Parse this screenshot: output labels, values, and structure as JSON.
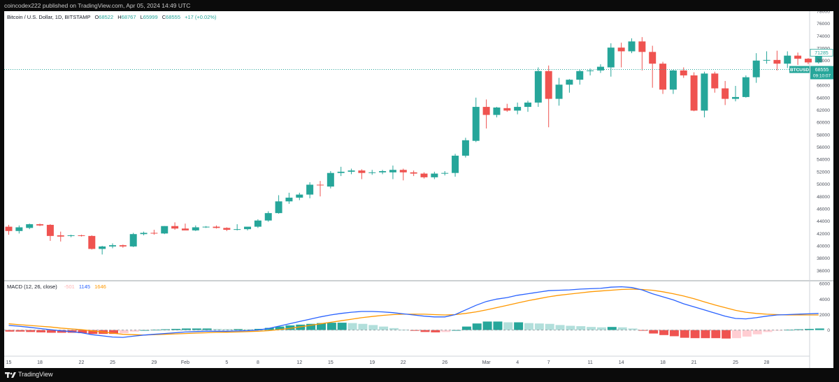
{
  "header": {
    "publish_line": "coincodex222 published on TradingView.com, Apr 05, 2024 14:49 UTC"
  },
  "legend": {
    "symbol": "Bitcoin / U.S. Dollar, 1D, BITSTAMP",
    "o_label": "O",
    "o_value": "68522",
    "h_label": "H",
    "h_value": "68767",
    "l_label": "L",
    "l_value": "65999",
    "c_label": "C",
    "c_value": "68555",
    "change": "+17 (+0.02%)"
  },
  "macd_legend": {
    "title": "MACD (12, 26, close)",
    "hist_value": "-501",
    "macd_value": "1145",
    "signal_value": "1646"
  },
  "badges": {
    "prev_price": "71285",
    "price": "68555",
    "symbol": "BTCUSD",
    "countdown": "09:10:07"
  },
  "footer": {
    "brand": "TradingView"
  },
  "colors": {
    "up": "#26a69a",
    "down": "#ef5350",
    "macd_line": "#2962ff",
    "signal_line": "#ff9800",
    "hist_up_strong": "#26a69a",
    "hist_up_weak": "#b2dfdb",
    "hist_down_strong": "#ef5350",
    "hist_down_weak": "#ffcdd2"
  },
  "chart_data": [
    {
      "type": "candlestick",
      "title": "Bitcoin / U.S. Dollar, 1D, BITSTAMP",
      "ylim": [
        34800,
        78000
      ],
      "y_ticks": [
        36000,
        38000,
        40000,
        42000,
        44000,
        46000,
        48000,
        50000,
        52000,
        54000,
        56000,
        58000,
        60000,
        62000,
        64000,
        66000,
        68000,
        70000,
        72000,
        74000,
        76000,
        78000
      ],
      "x_ticks": [
        "15",
        "18",
        "22",
        "25",
        "29",
        "Feb",
        "5",
        "8",
        "12",
        "15",
        "19",
        "22",
        "26",
        "Mar",
        "4",
        "7",
        "11",
        "14",
        "18",
        "21",
        "25",
        "28"
      ],
      "candles": [
        {
          "o": 43100,
          "h": 43400,
          "l": 41800,
          "c": 42400
        },
        {
          "o": 42400,
          "h": 43300,
          "l": 42000,
          "c": 43000
        },
        {
          "o": 42900,
          "h": 43600,
          "l": 42700,
          "c": 43500
        },
        {
          "o": 43500,
          "h": 43600,
          "l": 43200,
          "c": 43300
        },
        {
          "o": 43400,
          "h": 43500,
          "l": 40800,
          "c": 41600
        },
        {
          "o": 41700,
          "h": 42300,
          "l": 40700,
          "c": 41500
        },
        {
          "o": 41600,
          "h": 41800,
          "l": 41400,
          "c": 41700
        },
        {
          "o": 41700,
          "h": 41800,
          "l": 41500,
          "c": 41600
        },
        {
          "o": 41600,
          "h": 41700,
          "l": 39400,
          "c": 39500
        },
        {
          "o": 39500,
          "h": 40000,
          "l": 38600,
          "c": 39900
        },
        {
          "o": 39900,
          "h": 40400,
          "l": 39600,
          "c": 40100
        },
        {
          "o": 40100,
          "h": 40200,
          "l": 39700,
          "c": 39900
        },
        {
          "o": 39900,
          "h": 42100,
          "l": 39800,
          "c": 41900
        },
        {
          "o": 41900,
          "h": 42300,
          "l": 41700,
          "c": 42100
        },
        {
          "o": 42100,
          "h": 42600,
          "l": 41800,
          "c": 42000
        },
        {
          "o": 42000,
          "h": 43200,
          "l": 41900,
          "c": 43200
        },
        {
          "o": 43200,
          "h": 43800,
          "l": 42600,
          "c": 42800
        },
        {
          "o": 42800,
          "h": 43600,
          "l": 42600,
          "c": 42500
        },
        {
          "o": 42500,
          "h": 43300,
          "l": 42400,
          "c": 43000
        },
        {
          "o": 43000,
          "h": 43200,
          "l": 42900,
          "c": 43100
        },
        {
          "o": 43100,
          "h": 43300,
          "l": 42800,
          "c": 42900
        },
        {
          "o": 42900,
          "h": 43000,
          "l": 42400,
          "c": 42600
        },
        {
          "o": 42600,
          "h": 43500,
          "l": 42500,
          "c": 42700
        },
        {
          "o": 42700,
          "h": 43000,
          "l": 42500,
          "c": 43100
        },
        {
          "o": 43100,
          "h": 44300,
          "l": 42900,
          "c": 44100
        },
        {
          "o": 44100,
          "h": 45600,
          "l": 43900,
          "c": 45300
        },
        {
          "o": 45300,
          "h": 48200,
          "l": 45200,
          "c": 47200
        },
        {
          "o": 47200,
          "h": 48600,
          "l": 46800,
          "c": 47800
        },
        {
          "o": 47800,
          "h": 48600,
          "l": 47400,
          "c": 48300
        },
        {
          "o": 48300,
          "h": 50300,
          "l": 47700,
          "c": 49900
        },
        {
          "o": 49900,
          "h": 50500,
          "l": 48000,
          "c": 49800
        },
        {
          "o": 49600,
          "h": 52100,
          "l": 49300,
          "c": 51800
        },
        {
          "o": 51800,
          "h": 52800,
          "l": 51300,
          "c": 52000
        },
        {
          "o": 52000,
          "h": 52500,
          "l": 51600,
          "c": 52200
        },
        {
          "o": 52200,
          "h": 52400,
          "l": 50800,
          "c": 51800
        },
        {
          "o": 51800,
          "h": 52300,
          "l": 51500,
          "c": 51900
        },
        {
          "o": 51900,
          "h": 52300,
          "l": 51600,
          "c": 52100
        },
        {
          "o": 51900,
          "h": 53000,
          "l": 50800,
          "c": 52300
        },
        {
          "o": 52300,
          "h": 52500,
          "l": 50600,
          "c": 51900
        },
        {
          "o": 51900,
          "h": 52200,
          "l": 51300,
          "c": 51700
        },
        {
          "o": 51700,
          "h": 51900,
          "l": 50900,
          "c": 51100
        },
        {
          "o": 51100,
          "h": 52000,
          "l": 50800,
          "c": 51700
        },
        {
          "o": 51700,
          "h": 52100,
          "l": 51400,
          "c": 51800
        },
        {
          "o": 51800,
          "h": 54900,
          "l": 51200,
          "c": 54600
        },
        {
          "o": 54600,
          "h": 57500,
          "l": 54300,
          "c": 57100
        },
        {
          "o": 57000,
          "h": 64000,
          "l": 56800,
          "c": 62500
        },
        {
          "o": 62500,
          "h": 63700,
          "l": 59000,
          "c": 61200
        },
        {
          "o": 61200,
          "h": 62500,
          "l": 60800,
          "c": 62400
        },
        {
          "o": 62300,
          "h": 63000,
          "l": 61700,
          "c": 61900
        },
        {
          "o": 61900,
          "h": 63200,
          "l": 61300,
          "c": 62500
        },
        {
          "o": 62500,
          "h": 63500,
          "l": 61700,
          "c": 63200
        },
        {
          "o": 63200,
          "h": 68900,
          "l": 62500,
          "c": 68300
        },
        {
          "o": 68300,
          "h": 69200,
          "l": 59200,
          "c": 63800
        },
        {
          "o": 63800,
          "h": 67200,
          "l": 62700,
          "c": 66100
        },
        {
          "o": 66100,
          "h": 67000,
          "l": 64800,
          "c": 66900
        },
        {
          "o": 66900,
          "h": 68500,
          "l": 66100,
          "c": 68300
        },
        {
          "o": 68300,
          "h": 68700,
          "l": 67600,
          "c": 68400
        },
        {
          "o": 68400,
          "h": 69400,
          "l": 68000,
          "c": 69000
        },
        {
          "o": 68900,
          "h": 72800,
          "l": 67400,
          "c": 72100
        },
        {
          "o": 72100,
          "h": 72900,
          "l": 68900,
          "c": 71500
        },
        {
          "o": 71500,
          "h": 73600,
          "l": 71200,
          "c": 73100
        },
        {
          "o": 73100,
          "h": 73800,
          "l": 68400,
          "c": 71400
        },
        {
          "o": 71400,
          "h": 72400,
          "l": 65600,
          "c": 69500
        },
        {
          "o": 69500,
          "h": 69800,
          "l": 64600,
          "c": 65300
        },
        {
          "o": 65300,
          "h": 68500,
          "l": 64600,
          "c": 68400
        },
        {
          "o": 68400,
          "h": 68900,
          "l": 67200,
          "c": 67600
        },
        {
          "o": 67600,
          "h": 68100,
          "l": 61800,
          "c": 61900
        },
        {
          "o": 61900,
          "h": 68200,
          "l": 60800,
          "c": 67900
        },
        {
          "o": 67900,
          "h": 68200,
          "l": 64800,
          "c": 65500
        },
        {
          "o": 65500,
          "h": 66700,
          "l": 62800,
          "c": 63800
        },
        {
          "o": 63800,
          "h": 65900,
          "l": 63400,
          "c": 64100
        },
        {
          "o": 64100,
          "h": 67600,
          "l": 64000,
          "c": 67300
        },
        {
          "o": 67300,
          "h": 71200,
          "l": 66400,
          "c": 70000
        },
        {
          "o": 70000,
          "h": 71500,
          "l": 69500,
          "c": 70100
        },
        {
          "o": 70100,
          "h": 71600,
          "l": 68400,
          "c": 69500
        },
        {
          "o": 69500,
          "h": 71500,
          "l": 68800,
          "c": 70800
        },
        {
          "o": 70800,
          "h": 71300,
          "l": 69300,
          "c": 70300
        },
        {
          "o": 70300,
          "h": 70400,
          "l": 69400,
          "c": 69700
        },
        {
          "o": 69700,
          "h": 71500,
          "l": 69500,
          "c": 71300
        }
      ]
    },
    {
      "type": "line",
      "title": "MACD (12, 26, close)",
      "ylim": [
        -3200,
        6200
      ],
      "y_ticks": [
        0,
        2000,
        4000,
        6000
      ],
      "series": [
        {
          "name": "1145",
          "values": [
            600,
            500,
            350,
            200,
            50,
            -100,
            -200,
            -350,
            -600,
            -750,
            -900,
            -950,
            -800,
            -650,
            -550,
            -450,
            -350,
            -250,
            -200,
            -150,
            -150,
            -150,
            -120,
            -80,
            0,
            200,
            500,
            800,
            1100,
            1400,
            1700,
            1950,
            2150,
            2300,
            2400,
            2400,
            2350,
            2250,
            2100,
            1950,
            1800,
            1700,
            1700,
            2000,
            2600,
            3200,
            3700,
            4000,
            4200,
            4500,
            4700,
            4900,
            5100,
            5150,
            5200,
            5300,
            5350,
            5400,
            5550,
            5600,
            5500,
            5200,
            4700,
            4300,
            3900,
            3400,
            3000,
            2600,
            2200,
            1800,
            1500,
            1450,
            1600,
            1800,
            1950,
            2000,
            2050,
            2100,
            2150
          ]
        },
        {
          "name": "1646",
          "values": [
            800,
            700,
            600,
            500,
            400,
            250,
            150,
            50,
            -100,
            -250,
            -400,
            -550,
            -600,
            -650,
            -600,
            -550,
            -500,
            -450,
            -400,
            -350,
            -300,
            -280,
            -250,
            -200,
            -150,
            -80,
            50,
            200,
            400,
            600,
            800,
            1000,
            1200,
            1400,
            1600,
            1750,
            1900,
            2000,
            2050,
            2050,
            2050,
            2000,
            1950,
            2000,
            2150,
            2350,
            2600,
            2900,
            3200,
            3500,
            3800,
            4050,
            4300,
            4500,
            4650,
            4800,
            4950,
            5050,
            5150,
            5250,
            5300,
            5250,
            5150,
            4950,
            4700,
            4400,
            4050,
            3650,
            3250,
            2900,
            2550,
            2300,
            2150,
            2050,
            2000,
            1950,
            1950,
            1950,
            1950
          ]
        }
      ]
    },
    {
      "type": "bar",
      "title": "MACD histogram",
      "values": [
        -200,
        -200,
        -250,
        -300,
        -350,
        -350,
        -350,
        -400,
        -500,
        -500,
        -500,
        -400,
        -200,
        0,
        50,
        100,
        150,
        200,
        200,
        200,
        150,
        130,
        130,
        120,
        150,
        280,
        450,
        600,
        700,
        800,
        900,
        950,
        950,
        900,
        800,
        650,
        450,
        250,
        50,
        -100,
        -250,
        -300,
        -250,
        0,
        450,
        850,
        1100,
        1100,
        1000,
        1000,
        900,
        850,
        800,
        650,
        550,
        500,
        400,
        350,
        400,
        350,
        200,
        -50,
        -450,
        -650,
        -800,
        -1000,
        -1050,
        -1050,
        -1050,
        -1100,
        -1050,
        -850,
        -550,
        -250,
        -50,
        50,
        100,
        150,
        200
      ]
    }
  ]
}
